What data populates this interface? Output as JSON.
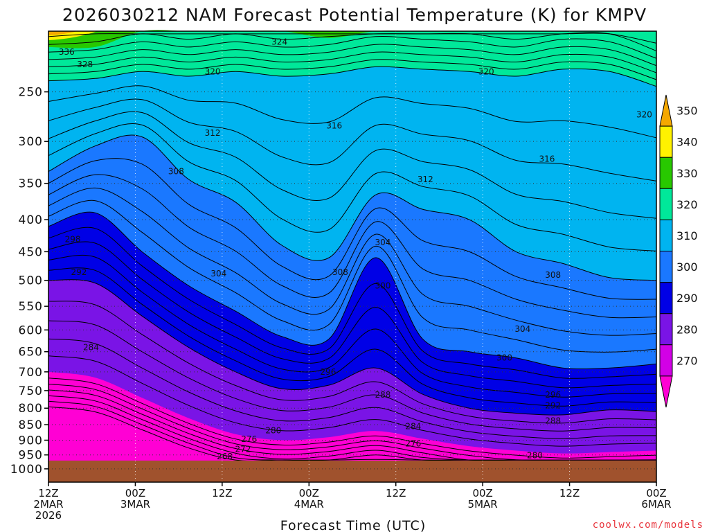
{
  "chart_data": {
    "type": "contour",
    "title": "2026030212 NAM Forecast Potential Temperature (K) for KMPV",
    "xlabel": "Forecast Time (UTC)",
    "ylabel": "",
    "credit": "coolwx.com/models",
    "x_ticks": [
      {
        "hour": 0,
        "lines": [
          "12Z",
          "2MAR",
          "2026"
        ]
      },
      {
        "hour": 12,
        "lines": [
          "00Z",
          "3MAR"
        ]
      },
      {
        "hour": 24,
        "lines": [
          "12Z"
        ]
      },
      {
        "hour": 36,
        "lines": [
          "00Z",
          "4MAR"
        ]
      },
      {
        "hour": 48,
        "lines": [
          "12Z"
        ]
      },
      {
        "hour": 60,
        "lines": [
          "00Z",
          "5MAR"
        ]
      },
      {
        "hour": 72,
        "lines": [
          "12Z"
        ]
      },
      {
        "hour": 84,
        "lines": [
          "00Z",
          "6MAR"
        ]
      }
    ],
    "x_range_hours": [
      0,
      84
    ],
    "y_range_hpa": [
      200,
      1050
    ],
    "y_ticks": [
      "250",
      "300",
      "350",
      "400",
      "450",
      "500",
      "550",
      "600",
      "650",
      "700",
      "750",
      "800",
      "850",
      "900",
      "950",
      "1000"
    ],
    "ground_pressure_hpa": 970,
    "colorbar": {
      "ticks": [
        "350",
        "340",
        "330",
        "320",
        "310",
        "300",
        "290",
        "280",
        "270"
      ],
      "colors": {
        "345_355": "#f5a800",
        "340_345": "#fff200",
        "330_340": "#28c800",
        "320_330": "#00e89a",
        "310_320": "#00b4f0",
        "300_310": "#1a78ff",
        "290_300": "#0000e6",
        "280_290": "#7a14e6",
        "270_280": "#d200e6",
        "below_270": "#ff00d4"
      },
      "ground_color": "#a0522d"
    },
    "contour_labels": [
      "336",
      "328",
      "324",
      "320",
      "320",
      "320",
      "316",
      "316",
      "312",
      "312",
      "308",
      "308",
      "308",
      "304",
      "304",
      "304",
      "300",
      "300",
      "298",
      "296",
      "296",
      "292",
      "292",
      "288",
      "288",
      "284",
      "284",
      "280",
      "280",
      "276",
      "276",
      "272",
      "268"
    ],
    "isotherm_profiles": [
      {
        "theta": 320,
        "p": [
          240,
          238,
          232,
          236,
          232,
          236,
          234,
          228,
          230,
          232,
          236,
          230,
          232,
          245
        ]
      },
      {
        "theta": 310,
        "p": [
          335,
          305,
          295,
          345,
          375,
          440,
          460,
          365,
          385,
          400,
          450,
          470,
          495,
          500
        ]
      },
      {
        "theta": 300,
        "p": [
          410,
          390,
          450,
          510,
          560,
          615,
          620,
          460,
          620,
          650,
          665,
          690,
          690,
          680
        ]
      },
      {
        "theta": 290,
        "p": [
          500,
          505,
          570,
          640,
          700,
          745,
          735,
          690,
          760,
          800,
          815,
          820,
          805,
          810
        ]
      },
      {
        "theta": 280,
        "p": [
          700,
          715,
          770,
          830,
          880,
          900,
          890,
          870,
          895,
          920,
          935,
          945,
          940,
          935
        ]
      }
    ]
  }
}
